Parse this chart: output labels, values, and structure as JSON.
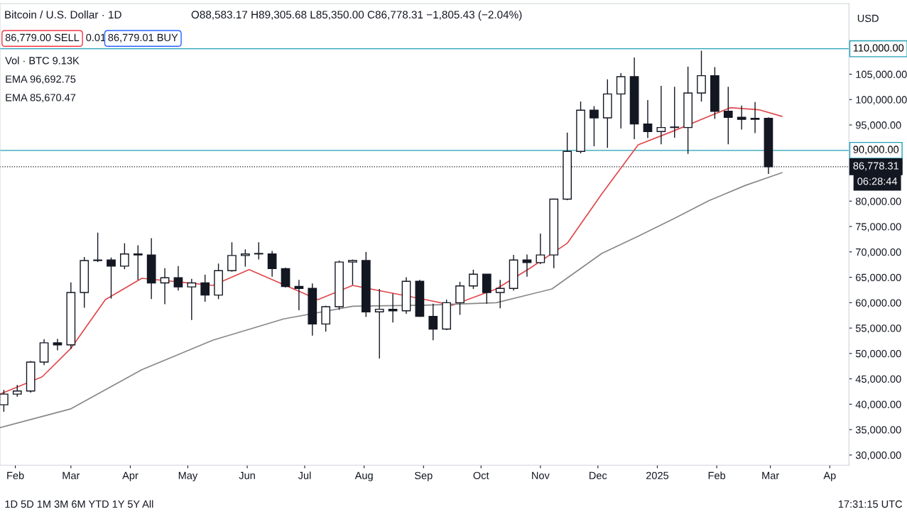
{
  "chart_data": {
    "type": "candlestick",
    "title": "Bitcoin / U.S. Dollar · 1D",
    "subtitle": "O88,583.17 H89,305.68 L85,350.00 C86,778.31 −1,805.43 (−2.04%)",
    "annotations": [
      "86,779.00 SELL",
      "0.01",
      "86,779.01 BUY",
      "Vol · BTC 9.13K",
      "EMA 96,692.75",
      "EMA 85,670.47",
      "USD",
      "06:28:44",
      "1D 5D 1M 3M 6M YTD 1Y 5Y All",
      "17:31:15 UTC"
    ],
    "x": [
      "2024-01-26",
      "2024-02-02",
      "2024-02-09",
      "2024-02-16",
      "2024-02-23",
      "2024-03-01",
      "2024-03-08",
      "2024-03-15",
      "2024-03-22",
      "2024-03-29",
      "2024-04-05",
      "2024-04-12",
      "2024-04-19",
      "2024-04-26",
      "2024-05-03",
      "2024-05-10",
      "2024-05-17",
      "2024-05-24",
      "2024-05-31",
      "2024-06-07",
      "2024-06-14",
      "2024-06-21",
      "2024-06-28",
      "2024-07-05",
      "2024-07-12",
      "2024-07-19",
      "2024-07-26",
      "2024-08-02",
      "2024-08-09",
      "2024-08-16",
      "2024-08-23",
      "2024-08-30",
      "2024-09-06",
      "2024-09-13",
      "2024-09-20",
      "2024-09-27",
      "2024-10-04",
      "2024-10-11",
      "2024-10-18",
      "2024-10-25",
      "2024-11-01",
      "2024-11-08",
      "2024-11-15",
      "2024-11-22",
      "2024-11-29",
      "2024-12-06",
      "2024-12-13",
      "2024-12-20",
      "2024-12-27",
      "2025-01-03",
      "2025-01-10",
      "2025-01-17",
      "2025-01-24",
      "2025-01-31",
      "2025-02-07",
      "2025-02-14",
      "2025-02-21",
      "2025-02-28"
    ],
    "ohlc": [
      [
        39900,
        42800,
        38500,
        42000
      ],
      [
        42000,
        43800,
        41500,
        42600
      ],
      [
        42600,
        48500,
        42300,
        48300
      ],
      [
        48300,
        52800,
        47700,
        52100
      ],
      [
        52100,
        52900,
        50600,
        51700
      ],
      [
        51700,
        64000,
        50900,
        62000
      ],
      [
        62000,
        69000,
        59000,
        68300
      ],
      [
        68300,
        73800,
        68000,
        68400
      ],
      [
        68400,
        68900,
        60800,
        67200
      ],
      [
        67200,
        71700,
        66600,
        69600
      ],
      [
        69600,
        71300,
        64500,
        69400
      ],
      [
        69400,
        72700,
        60700,
        63900
      ],
      [
        63900,
        66800,
        59700,
        64900
      ],
      [
        64900,
        67200,
        62400,
        63100
      ],
      [
        63100,
        64700,
        56600,
        63900
      ],
      [
        63900,
        65500,
        60200,
        61500
      ],
      [
        61500,
        67700,
        60700,
        66300
      ],
      [
        66300,
        71900,
        66100,
        69300
      ],
      [
        69300,
        70500,
        67100,
        69600
      ],
      [
        69600,
        71900,
        68500,
        69600
      ],
      [
        69600,
        70200,
        65100,
        66700
      ],
      [
        66700,
        66900,
        63000,
        63200
      ],
      [
        63200,
        64500,
        58500,
        62800
      ],
      [
        62800,
        63800,
        53500,
        55800
      ],
      [
        55800,
        59400,
        54300,
        59200
      ],
      [
        59200,
        68300,
        58600,
        68000
      ],
      [
        68000,
        68500,
        63500,
        68300
      ],
      [
        68300,
        70000,
        57200,
        58200
      ],
      [
        58200,
        62700,
        49000,
        58700
      ],
      [
        58700,
        61800,
        56100,
        58400
      ],
      [
        58400,
        65000,
        57800,
        64200
      ],
      [
        64200,
        64500,
        57200,
        57300
      ],
      [
        57300,
        59800,
        52600,
        54800
      ],
      [
        54800,
        60600,
        54600,
        60000
      ],
      [
        60000,
        64100,
        57600,
        63300
      ],
      [
        63300,
        66500,
        62700,
        65600
      ],
      [
        65600,
        65600,
        59800,
        62000
      ],
      [
        62000,
        64500,
        58900,
        62800
      ],
      [
        62800,
        69400,
        62400,
        68400
      ],
      [
        68400,
        69500,
        65100,
        67900
      ],
      [
        67900,
        73600,
        67600,
        69400
      ],
      [
        69400,
        80500,
        66800,
        80400
      ],
      [
        80400,
        93500,
        80200,
        89800
      ],
      [
        89800,
        99600,
        89400,
        97900
      ],
      [
        97900,
        98700,
        90800,
        96400
      ],
      [
        96400,
        104000,
        90500,
        101100
      ],
      [
        101100,
        105200,
        94300,
        104500
      ],
      [
        104500,
        108300,
        92200,
        95200
      ],
      [
        95200,
        99900,
        92400,
        93700
      ],
      [
        93700,
        102700,
        91200,
        94500
      ],
      [
        94500,
        102500,
        92500,
        94500
      ],
      [
        94500,
        106500,
        89300,
        101300
      ],
      [
        101300,
        109600,
        99600,
        104700
      ],
      [
        104700,
        106400,
        96200,
        97700
      ],
      [
        97700,
        102500,
        91200,
        96500
      ],
      [
        96500,
        98800,
        94100,
        96100
      ],
      [
        96100,
        99500,
        93400,
        96300
      ],
      [
        96300,
        96500,
        85350,
        86778
      ]
    ],
    "color": "#131722",
    "series": [
      {
        "type": "line",
        "color": "#e0474c",
        "x": [
          "2024-01-24",
          "2024-02-15",
          "2024-03-01",
          "2024-03-19",
          "2024-04-07",
          "2024-04-26",
          "2024-05-14",
          "2024-06-02",
          "2024-07-08",
          "2024-07-26",
          "2024-08-14",
          "2024-09-02",
          "2024-09-16",
          "2024-10-09",
          "2024-10-27",
          "2024-11-15",
          "2024-12-03",
          "2024-12-22",
          "2025-01-10",
          "2025-01-28",
          "2025-02-08",
          "2025-02-23",
          "2025-03-07"
        ],
        "values": [
          42000,
          45400,
          51000,
          60600,
          64800,
          64100,
          63400,
          66500,
          60600,
          63400,
          62000,
          60600,
          59500,
          62700,
          66900,
          71700,
          81400,
          91100,
          93900,
          96700,
          98400,
          98000,
          96700
        ]
      },
      {
        "type": "line",
        "color": "#888888",
        "x": [
          "2024-01-24",
          "2024-03-01",
          "2024-04-07",
          "2024-05-14",
          "2024-06-20",
          "2024-07-26",
          "2024-09-02",
          "2024-10-09",
          "2024-11-07",
          "2024-12-03",
          "2024-12-22",
          "2025-01-10",
          "2025-01-28",
          "2025-02-16",
          "2025-03-07"
        ],
        "values": [
          35400,
          39100,
          46800,
          52600,
          56800,
          59300,
          59500,
          60000,
          62700,
          69700,
          73100,
          76600,
          80100,
          83100,
          85600
        ]
      }
    ],
    "ref_lines": [
      {
        "axis": "y",
        "value": 110000,
        "label": "110,000.00",
        "color": "#22a0b4",
        "line_style": "solid"
      },
      {
        "axis": "y",
        "value": 90000,
        "label": "90,000.00",
        "color": "#22a0b4",
        "line_style": "solid"
      },
      {
        "axis": "y",
        "value": 86778.31,
        "label": "86,778.31",
        "color": "#131722",
        "line_style": "dotted"
      }
    ],
    "xlim": [
      "2024-01-24",
      "2025-04-11"
    ],
    "xticks": [
      {
        "value": "2024-02-01",
        "label": "Feb"
      },
      {
        "value": "2024-03-01",
        "label": "Mar"
      },
      {
        "value": "2024-04-01",
        "label": "Apr"
      },
      {
        "value": "2024-05-01",
        "label": "May"
      },
      {
        "value": "2024-06-01",
        "label": "Jun"
      },
      {
        "value": "2024-07-01",
        "label": "Jul"
      },
      {
        "value": "2024-08-01",
        "label": "Aug"
      },
      {
        "value": "2024-09-01",
        "label": "Sep"
      },
      {
        "value": "2024-10-01",
        "label": "Oct"
      },
      {
        "value": "2024-11-01",
        "label": "Nov"
      },
      {
        "value": "2024-12-01",
        "label": "Dec"
      },
      {
        "value": "2025-01-01",
        "label": "2025"
      },
      {
        "value": "2025-02-01",
        "label": "Feb"
      },
      {
        "value": "2025-03-01",
        "label": "Mar"
      },
      {
        "value": "2025-04-01",
        "label": "Ap"
      }
    ],
    "ylim": [
      28000,
      118900
    ],
    "yticks": [
      {
        "value": 30000,
        "label": "30,000.00"
      },
      {
        "value": 35000,
        "label": "35,000.00"
      },
      {
        "value": 40000,
        "label": "40,000.00"
      },
      {
        "value": 45000,
        "label": "45,000.00"
      },
      {
        "value": 50000,
        "label": "50,000.00"
      },
      {
        "value": 55000,
        "label": "55,000.00"
      },
      {
        "value": 60000,
        "label": "60,000.00"
      },
      {
        "value": 65000,
        "label": "65,000.00"
      },
      {
        "value": 70000,
        "label": "70,000.00"
      },
      {
        "value": 75000,
        "label": "75,000.00"
      },
      {
        "value": 80000,
        "label": "80,000.00"
      },
      {
        "value": 95000,
        "label": "95,000.00"
      },
      {
        "value": 100000,
        "label": "100,000.00"
      },
      {
        "value": 105000,
        "label": "105,000.00"
      }
    ],
    "grid": false
  }
}
